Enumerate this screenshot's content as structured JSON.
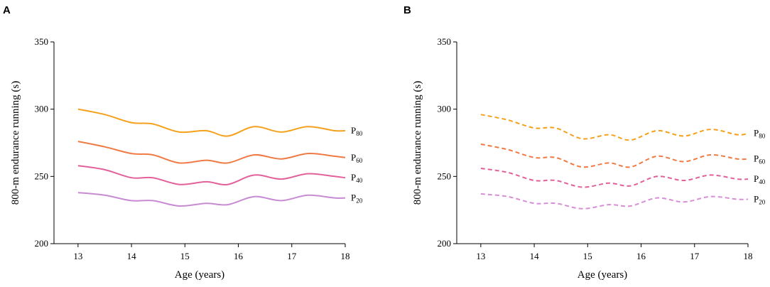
{
  "chart_data": [
    {
      "panel": "A",
      "type": "line",
      "line_style": "solid",
      "title": "",
      "xlabel": "Age (years)",
      "ylabel": "800-m endurance running (s)",
      "xlim": [
        12.55,
        18
      ],
      "ylim": [
        200,
        350
      ],
      "xticks": [
        13,
        14,
        15,
        16,
        17,
        18
      ],
      "yticks": [
        200,
        250,
        300,
        350
      ],
      "series": [
        {
          "name": "P80",
          "label_main": "P",
          "label_sub": "80",
          "color": "#f5a11c",
          "x": [
            13,
            13.5,
            14,
            14.4,
            14.9,
            15.4,
            15.8,
            16.3,
            16.8,
            17.3,
            17.8,
            18
          ],
          "y": [
            300,
            296,
            290,
            289,
            283,
            284,
            280,
            287,
            283,
            287,
            284,
            284
          ]
        },
        {
          "name": "P60",
          "label_main": "P",
          "label_sub": "60",
          "color": "#f07a44",
          "x": [
            13,
            13.5,
            14,
            14.4,
            14.9,
            15.4,
            15.8,
            16.3,
            16.8,
            17.3,
            17.8,
            18
          ],
          "y": [
            276,
            272,
            267,
            266,
            260,
            262,
            260,
            266,
            263,
            267,
            265,
            264
          ]
        },
        {
          "name": "P40",
          "label_main": "P",
          "label_sub": "40",
          "color": "#e2619a",
          "x": [
            13,
            13.5,
            14,
            14.4,
            14.9,
            15.4,
            15.8,
            16.3,
            16.8,
            17.3,
            17.8,
            18
          ],
          "y": [
            258,
            255,
            249,
            249,
            244,
            246,
            244,
            251,
            248,
            252,
            250,
            249
          ]
        },
        {
          "name": "P20",
          "label_main": "P",
          "label_sub": "20",
          "color": "#c88bd3",
          "x": [
            13,
            13.5,
            14,
            14.4,
            14.9,
            15.4,
            15.8,
            16.3,
            16.8,
            17.3,
            17.8,
            18
          ],
          "y": [
            238,
            236,
            232,
            232,
            228,
            230,
            229,
            235,
            232,
            236,
            234,
            234
          ]
        }
      ]
    },
    {
      "panel": "B",
      "type": "line",
      "line_style": "dashed",
      "title": "",
      "xlabel": "Age (years)",
      "ylabel": "800-m endurance running (s)",
      "xlim": [
        12.55,
        18
      ],
      "ylim": [
        200,
        350
      ],
      "xticks": [
        13,
        14,
        15,
        16,
        17,
        18
      ],
      "yticks": [
        200,
        250,
        300,
        350
      ],
      "series": [
        {
          "name": "P80",
          "label_main": "P",
          "label_sub": "80",
          "color": "#f5a11c",
          "x": [
            13,
            13.5,
            14,
            14.4,
            14.9,
            15.4,
            15.8,
            16.3,
            16.8,
            17.3,
            17.8,
            18
          ],
          "y": [
            296,
            292,
            286,
            286,
            278,
            281,
            277,
            284,
            280,
            285,
            281,
            282
          ]
        },
        {
          "name": "P60",
          "label_main": "P",
          "label_sub": "60",
          "color": "#f07a44",
          "x": [
            13,
            13.5,
            14,
            14.4,
            14.9,
            15.4,
            15.8,
            16.3,
            16.8,
            17.3,
            17.8,
            18
          ],
          "y": [
            274,
            270,
            264,
            264,
            257,
            260,
            257,
            265,
            261,
            266,
            263,
            263
          ]
        },
        {
          "name": "P40",
          "label_main": "P",
          "label_sub": "40",
          "color": "#e2619a",
          "x": [
            13,
            13.5,
            14,
            14.4,
            14.9,
            15.4,
            15.8,
            16.3,
            16.8,
            17.3,
            17.8,
            18
          ],
          "y": [
            256,
            253,
            247,
            247,
            242,
            245,
            243,
            250,
            247,
            251,
            248,
            248
          ]
        },
        {
          "name": "P20",
          "label_main": "P",
          "label_sub": "20",
          "color": "#d78fd6",
          "x": [
            13,
            13.5,
            14,
            14.4,
            14.9,
            15.4,
            15.8,
            16.3,
            16.8,
            17.3,
            17.8,
            18
          ],
          "y": [
            237,
            235,
            230,
            230,
            226,
            229,
            228,
            234,
            231,
            235,
            233,
            233
          ]
        }
      ]
    }
  ]
}
